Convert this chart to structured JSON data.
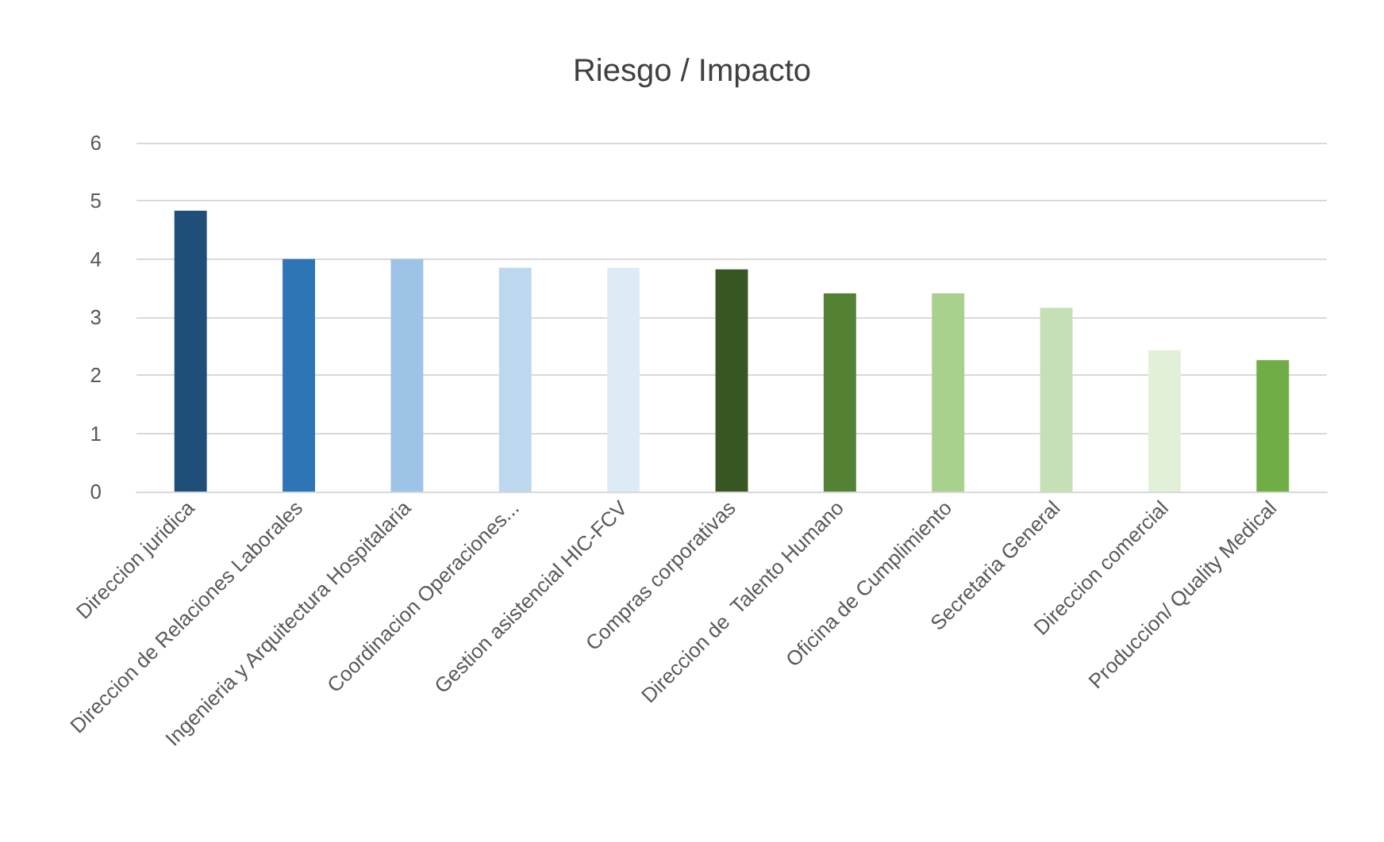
{
  "chart_data": {
    "type": "bar",
    "title": "Riesgo / Impacto",
    "categories": [
      "Direccion juridica",
      "Direccion de Relaciones Laborales",
      "Ingenieria y Arquitectura Hospitalaria",
      "Coordinacion Operaciones...",
      "Gestion asistencial HIC-FCV",
      "Compras corporativas",
      "Direccion de  Talento Humano",
      "Oficina de Cumplimiento",
      "Secretaria General",
      "Direccion comercial",
      "Produccion/ Quality Medical"
    ],
    "values": [
      4.83,
      4.0,
      4.0,
      3.85,
      3.85,
      3.82,
      3.41,
      3.41,
      3.16,
      2.43,
      2.26
    ],
    "colors": [
      "#1f4e79",
      "#2e75b6",
      "#9dc3e6",
      "#bdd7ee",
      "#deebf7",
      "#375623",
      "#548235",
      "#a9d18e",
      "#c5e0b4",
      "#e2f0d9",
      "#70ad47"
    ],
    "ylim": [
      0,
      6
    ],
    "yticks": [
      0,
      1,
      2,
      3,
      4,
      5,
      6
    ],
    "grid": "y"
  }
}
